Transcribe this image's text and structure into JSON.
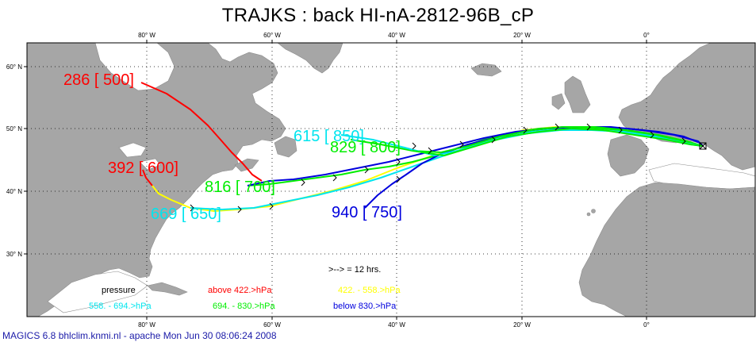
{
  "title": "TRAJKS : back HI-nA-2812-96B_cP",
  "axes": {
    "lon_ticks_top": [
      "80° W",
      "60° W",
      "40° W",
      "20° W",
      "0°"
    ],
    "lon_ticks_bottom": [
      "80° W",
      "60° W",
      "40° W",
      "20° W",
      "0°"
    ],
    "lat_ticks": [
      "60° N",
      "50° N",
      "40° N",
      "30° N"
    ]
  },
  "trajectory_labels": [
    {
      "text": "286 [ 500]",
      "color": "#ff0000"
    },
    {
      "text": "392 [ 600]",
      "color": "#ff0000"
    },
    {
      "text": "816 [ 700]",
      "color": "#00ee00"
    },
    {
      "text": "669 [ 650]",
      "color": "#00e5ee"
    },
    {
      "text": "940 [ 750]",
      "color": "#0000dd"
    },
    {
      "text": "615 [ 850]",
      "color": "#00e5ee"
    },
    {
      "text": "829 [ 800]",
      "color": "#00ee00"
    }
  ],
  "legend": {
    "arrow_note": ">--> = 12 hrs.",
    "pressure_label": "pressure",
    "above": "above  422.>hPa",
    "yellow_range": "422. -    558.>hPa",
    "cyan_range": "558. -    694.>hPa",
    "green_range": "694. -    830.>hPa",
    "below": "below  830.>hPa",
    "colors": {
      "red": "#ff0000",
      "yellow": "#ffff00",
      "cyan": "#00e5ee",
      "green": "#00ee00",
      "blue": "#0000dd"
    }
  },
  "footer": "MAGICS 6.8 bhlclim.knmi.nl - apache Mon Jun 30 08:06:24 2008"
}
